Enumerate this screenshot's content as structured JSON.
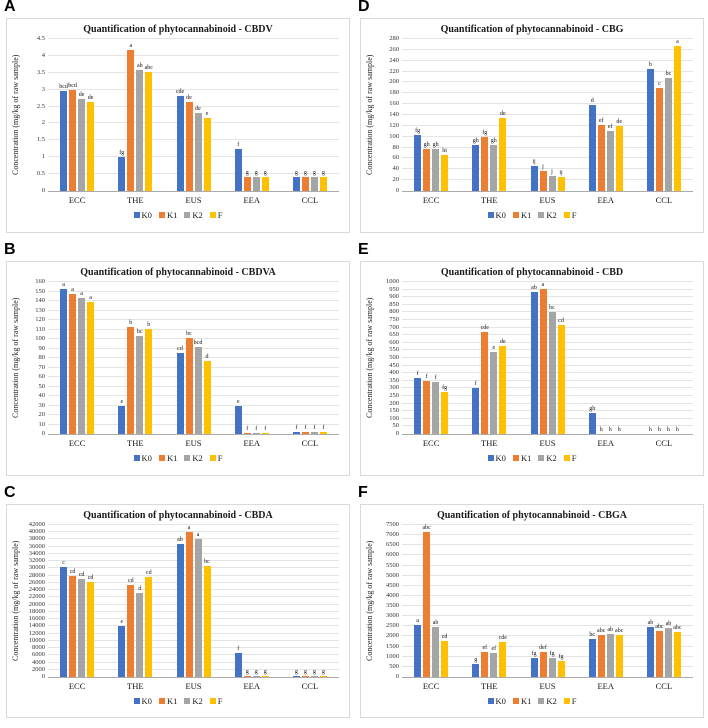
{
  "figure": {
    "ylabel": "Concentration (mg/kg of raw sample)",
    "legend_labels": [
      "K0",
      "K1",
      "K2",
      "F"
    ],
    "palette": {
      "K0": "#4472C4",
      "K1": "#ED7D31",
      "K2": "#A5A5A5",
      "F": "#FFC000"
    }
  },
  "chart_data": [
    {
      "panel": "A",
      "type": "bar",
      "title": "Quantification of phytocannabinoid - CBDV",
      "ylabel": "Concentration (mg/kg of raw sample)",
      "categories": [
        "ECC",
        "THE",
        "EUS",
        "EEA",
        "CCL"
      ],
      "ylim": [
        0,
        4.5
      ],
      "ystep": 0.5,
      "grid": true,
      "legend_position": "bottom",
      "series": [
        {
          "name": "K0",
          "color": "#4472C4",
          "values": [
            2.97,
            1.0,
            2.8,
            1.23,
            0.41
          ],
          "labels": [
            "bcd",
            "fg",
            "cde",
            "f",
            "g"
          ]
        },
        {
          "name": "K1",
          "color": "#ED7D31",
          "values": [
            2.98,
            4.18,
            2.65,
            0.41,
            0.41
          ],
          "labels": [
            "bcd",
            "a",
            "de",
            "g",
            "g"
          ]
        },
        {
          "name": "K2",
          "color": "#A5A5A5",
          "values": [
            2.71,
            3.57,
            2.3,
            0.41,
            0.41
          ],
          "labels": [
            "de",
            "ab",
            "de",
            "g",
            "g"
          ]
        },
        {
          "name": "F",
          "color": "#FFC000",
          "values": [
            2.64,
            3.52,
            2.16,
            0.41,
            0.41
          ],
          "labels": [
            "de",
            "abc",
            "e",
            "g",
            "g"
          ]
        }
      ]
    },
    {
      "panel": "B",
      "type": "bar",
      "title": "Quantification of phytocannabinoid - CBDVA",
      "ylabel": "Concentration (mg/kg of raw sample)",
      "categories": [
        "ECC",
        "THE",
        "EUS",
        "EEA",
        "CCL"
      ],
      "ylim": [
        0,
        160
      ],
      "ystep": 10,
      "grid": true,
      "legend_position": "bottom",
      "series": [
        {
          "name": "K0",
          "color": "#4472C4",
          "values": [
            155,
            30,
            85,
            29,
            2
          ],
          "labels": [
            "a",
            "e",
            "cd",
            "e",
            "f"
          ]
        },
        {
          "name": "K1",
          "color": "#ED7D31",
          "values": [
            147,
            113,
            101,
            1.5,
            2
          ],
          "labels": [
            "a",
            "b",
            "bc",
            "f",
            "f"
          ]
        },
        {
          "name": "K2",
          "color": "#A5A5A5",
          "values": [
            143,
            103,
            92,
            1.5,
            2
          ],
          "labels": [
            "a",
            "bc",
            "bcd",
            "f",
            "f"
          ]
        },
        {
          "name": "F",
          "color": "#FFC000",
          "values": [
            139,
            111,
            77,
            1.5,
            2
          ],
          "labels": [
            "a",
            "b",
            "d",
            "f",
            "f"
          ]
        }
      ]
    },
    {
      "panel": "C",
      "type": "bar",
      "title": "Quantification of phytocannabinoid - CBDA",
      "ylabel": "Concentration (mg/kg of raw sample)",
      "categories": [
        "ECC",
        "THE",
        "EUS",
        "EEA",
        "CCL"
      ],
      "ylim": [
        0,
        42000
      ],
      "ystep": 2000,
      "grid": true,
      "legend_position": "bottom",
      "series": [
        {
          "name": "K0",
          "color": "#4472C4",
          "values": [
            30500,
            14200,
            36700,
            6600,
            200
          ],
          "labels": [
            "c",
            "e",
            "ab",
            "f",
            "g"
          ]
        },
        {
          "name": "K1",
          "color": "#ED7D31",
          "values": [
            27800,
            25400,
            40700,
            200,
            200
          ],
          "labels": [
            "cd",
            "cd",
            "a",
            "g",
            "g"
          ]
        },
        {
          "name": "K2",
          "color": "#A5A5A5",
          "values": [
            27200,
            23300,
            38000,
            200,
            200
          ],
          "labels": [
            "cd",
            "d",
            "a",
            "g",
            "g"
          ]
        },
        {
          "name": "F",
          "color": "#FFC000",
          "values": [
            26200,
            27700,
            30800,
            200,
            200
          ],
          "labels": [
            "cd",
            "cd",
            "bc",
            "g",
            "g"
          ]
        }
      ]
    },
    {
      "panel": "D",
      "type": "bar",
      "title": "Quantification of phytocannabinoid - CBG",
      "ylabel": "Concentration (mg/kg of raw sample)",
      "categories": [
        "ECC",
        "THE",
        "EUS",
        "EEA",
        "CCL"
      ],
      "ylim": [
        0,
        280
      ],
      "ystep": 20,
      "grid": true,
      "legend_position": "bottom",
      "series": [
        {
          "name": "K0",
          "color": "#4472C4",
          "values": [
            104,
            84,
            47,
            159,
            224
          ],
          "labels": [
            "fg",
            "gh",
            "ij",
            "d",
            "b"
          ]
        },
        {
          "name": "K1",
          "color": "#ED7D31",
          "values": [
            77,
            99,
            36,
            122,
            190
          ],
          "labels": [
            "gh",
            "fg",
            "j",
            "ef",
            "c"
          ]
        },
        {
          "name": "K2",
          "color": "#A5A5A5",
          "values": [
            78,
            85,
            28,
            111,
            208
          ],
          "labels": [
            "gh",
            "gh",
            "j",
            "ef",
            "bc"
          ]
        },
        {
          "name": "F",
          "color": "#FFC000",
          "values": [
            66,
            134,
            25,
            120,
            271
          ],
          "labels": [
            "hi",
            "de",
            "ij",
            "de",
            "a"
          ]
        }
      ]
    },
    {
      "panel": "E",
      "type": "bar",
      "title": "Quantification of phytocannabinoid - CBD",
      "ylabel": "Concentration (mg/kg of raw sample)",
      "categories": [
        "ECC",
        "THE",
        "EUS",
        "EEA",
        "CCL"
      ],
      "ylim": [
        0,
        1000
      ],
      "ystep": 50,
      "grid": true,
      "legend_position": "bottom",
      "series": [
        {
          "name": "K0",
          "color": "#4472C4",
          "values": [
            370,
            300,
            935,
            135,
            0
          ],
          "labels": [
            "f",
            "f",
            "ab",
            "gh",
            "h"
          ]
        },
        {
          "name": "K1",
          "color": "#ED7D31",
          "values": [
            350,
            670,
            960,
            0,
            0
          ],
          "labels": [
            "f",
            "cde",
            "a",
            "h",
            "h"
          ]
        },
        {
          "name": "K2",
          "color": "#A5A5A5",
          "values": [
            345,
            540,
            800,
            0,
            0
          ],
          "labels": [
            "f",
            "e",
            "bc",
            "h",
            "h"
          ]
        },
        {
          "name": "F",
          "color": "#FFC000",
          "values": [
            275,
            580,
            720,
            0,
            0
          ],
          "labels": [
            "fg",
            "de",
            "cd",
            "h",
            "h"
          ]
        }
      ]
    },
    {
      "panel": "F",
      "type": "bar",
      "title": "Quantification of phytocannabinoid - CBGA",
      "ylabel": "Concentration (mg/kg of raw sample)",
      "categories": [
        "ECC",
        "THE",
        "EUS",
        "EEA",
        "CCL"
      ],
      "ylim": [
        0,
        7500
      ],
      "ystep": 500,
      "grid": true,
      "legend_position": "bottom",
      "series": [
        {
          "name": "K0",
          "color": "#4472C4",
          "values": [
            2580,
            620,
            930,
            1900,
            2470
          ],
          "labels": [
            "a",
            "g",
            "fg",
            "bc",
            "ab"
          ]
        },
        {
          "name": "K1",
          "color": "#ED7D31",
          "values": [
            7180,
            1250,
            1250,
            2090,
            2250
          ],
          "labels": [
            "abc",
            "ef",
            "def",
            "abc",
            "abc"
          ]
        },
        {
          "name": "K2",
          "color": "#A5A5A5",
          "values": [
            2450,
            1180,
            920,
            2130,
            2420
          ],
          "labels": [
            "ab",
            "ef",
            "fg",
            "ab",
            "ab"
          ]
        },
        {
          "name": "F",
          "color": "#FFC000",
          "values": [
            1800,
            1730,
            800,
            2090,
            2230
          ],
          "labels": [
            "cd",
            "cde",
            "fg",
            "abc",
            "abc"
          ]
        }
      ]
    }
  ]
}
